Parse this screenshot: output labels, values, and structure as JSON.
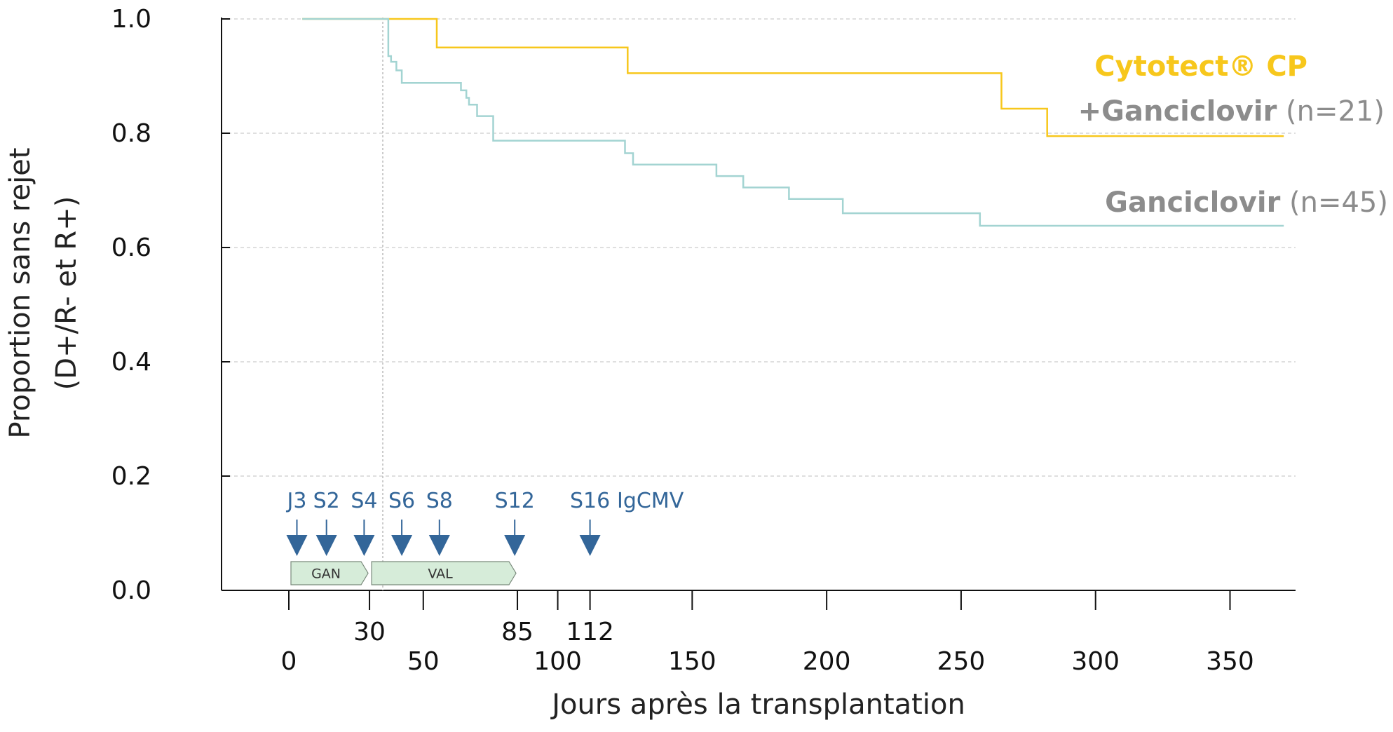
{
  "chart_data": {
    "type": "line",
    "xlabel": "Jours après la transplantation",
    "ylabel_line1": "Proportion sans rejet",
    "ylabel_line2": "(D+/R- et R+)",
    "y_ticks": [
      "0.0",
      "0.2",
      "0.4",
      "0.6",
      "0.8",
      "1.0"
    ],
    "x_ticks_major": [
      "0",
      "50",
      "100",
      "150",
      "200",
      "250",
      "300",
      "350"
    ],
    "x_ticks_minor": [
      "30",
      "85",
      "112"
    ],
    "xlim": [
      -25,
      387
    ],
    "ylim": [
      0,
      1
    ],
    "grid": true,
    "legend_placement": "top-right, inline at line ends",
    "series": [
      {
        "name": "Cytotect® CP +Ganciclovir",
        "legend_line1": "Cytotect® CP",
        "legend_line2_bold": "+Ganciclovir",
        "legend_line2_n": " (n=21)",
        "color": "#F7C71C",
        "points": [
          [
            5,
            1.0
          ],
          [
            55,
            1.0
          ],
          [
            55,
            0.95
          ],
          [
            126,
            0.95
          ],
          [
            126,
            0.905
          ],
          [
            265,
            0.905
          ],
          [
            265,
            0.843
          ],
          [
            282,
            0.843
          ],
          [
            282,
            0.795
          ],
          [
            370,
            0.795
          ]
        ]
      },
      {
        "name": "Ganciclovir",
        "legend_line1_bold": "Ganciclovir",
        "legend_line1_n": " (n=45)",
        "color": "#A3D4D2",
        "points": [
          [
            5,
            1.0
          ],
          [
            37,
            1.0
          ],
          [
            37,
            0.935
          ],
          [
            38,
            0.935
          ],
          [
            38,
            0.925
          ],
          [
            40,
            0.925
          ],
          [
            40,
            0.91
          ],
          [
            42,
            0.91
          ],
          [
            42,
            0.888
          ],
          [
            64,
            0.888
          ],
          [
            64,
            0.875
          ],
          [
            66,
            0.875
          ],
          [
            66,
            0.862
          ],
          [
            67,
            0.862
          ],
          [
            67,
            0.85
          ],
          [
            70,
            0.85
          ],
          [
            70,
            0.83
          ],
          [
            76,
            0.83
          ],
          [
            76,
            0.787
          ],
          [
            125,
            0.787
          ],
          [
            125,
            0.765
          ],
          [
            128,
            0.765
          ],
          [
            128,
            0.745
          ],
          [
            159,
            0.745
          ],
          [
            159,
            0.725
          ],
          [
            169,
            0.725
          ],
          [
            169,
            0.705
          ],
          [
            186,
            0.705
          ],
          [
            186,
            0.685
          ],
          [
            206,
            0.685
          ],
          [
            206,
            0.66
          ],
          [
            257,
            0.66
          ],
          [
            257,
            0.638
          ],
          [
            370,
            0.638
          ]
        ]
      }
    ],
    "markers": [
      {
        "label": "J3",
        "day": 3
      },
      {
        "label": "S2",
        "day": 14
      },
      {
        "label": "S4",
        "day": 28
      },
      {
        "label": "S6",
        "day": 42
      },
      {
        "label": "S8",
        "day": 56
      },
      {
        "label": "S12",
        "day": 84
      },
      {
        "label": "S16",
        "day": 112
      },
      {
        "label": "IgCMV",
        "day": null
      }
    ],
    "marker_color": "#336699",
    "treatment_bars": [
      {
        "label": "GAN",
        "start": 0,
        "end": 30
      },
      {
        "label": "VAL",
        "start": 30,
        "end": 85
      }
    ],
    "treatment_bar_color": "#D6ECD9",
    "grid_color": "#CCCCCC"
  }
}
